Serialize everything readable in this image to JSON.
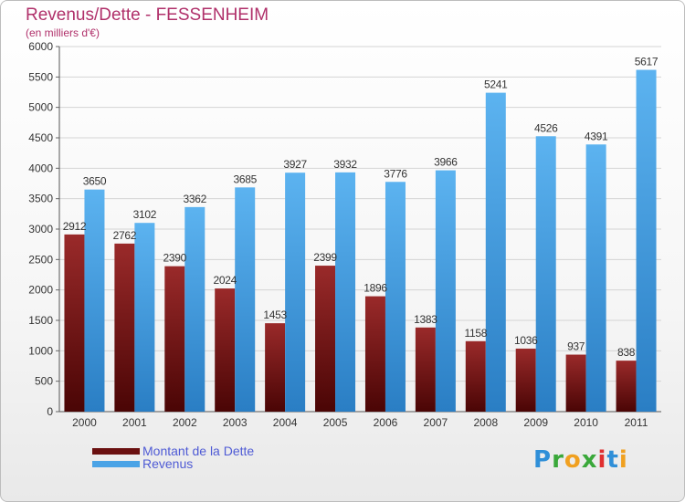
{
  "chart_data": {
    "type": "bar",
    "title": "Revenus/Dette - FESSENHEIM",
    "subtitle": "(en milliers d'€)",
    "categories": [
      "2000",
      "2001",
      "2002",
      "2003",
      "2004",
      "2005",
      "2006",
      "2007",
      "2008",
      "2009",
      "2010",
      "2011"
    ],
    "series": [
      {
        "name": "Montant de la Dette",
        "color": "#7a1a1a",
        "values": [
          2912,
          2762,
          2390,
          2024,
          1453,
          2399,
          1896,
          1383,
          1158,
          1036,
          937,
          838
        ]
      },
      {
        "name": "Revenus",
        "color": "#4aa3e6",
        "values": [
          3650,
          3102,
          3362,
          3685,
          3927,
          3932,
          3776,
          3966,
          5241,
          4526,
          4391,
          5617
        ]
      }
    ],
    "ylim": [
      0,
      6000
    ],
    "yticks": [
      0,
      500,
      1000,
      1500,
      2000,
      2500,
      3000,
      3500,
      4000,
      4500,
      5000,
      5500,
      6000
    ],
    "grid": true,
    "legend": "bottom-left"
  },
  "logo": {
    "letters": [
      "P",
      "r",
      "o",
      "x",
      "i",
      "t",
      "i"
    ],
    "colors": [
      "#2f8fd8",
      "#3aa83a",
      "#f0a020",
      "#3aa83a",
      "#e03030",
      "#2f8fd8",
      "#f0a020"
    ]
  }
}
